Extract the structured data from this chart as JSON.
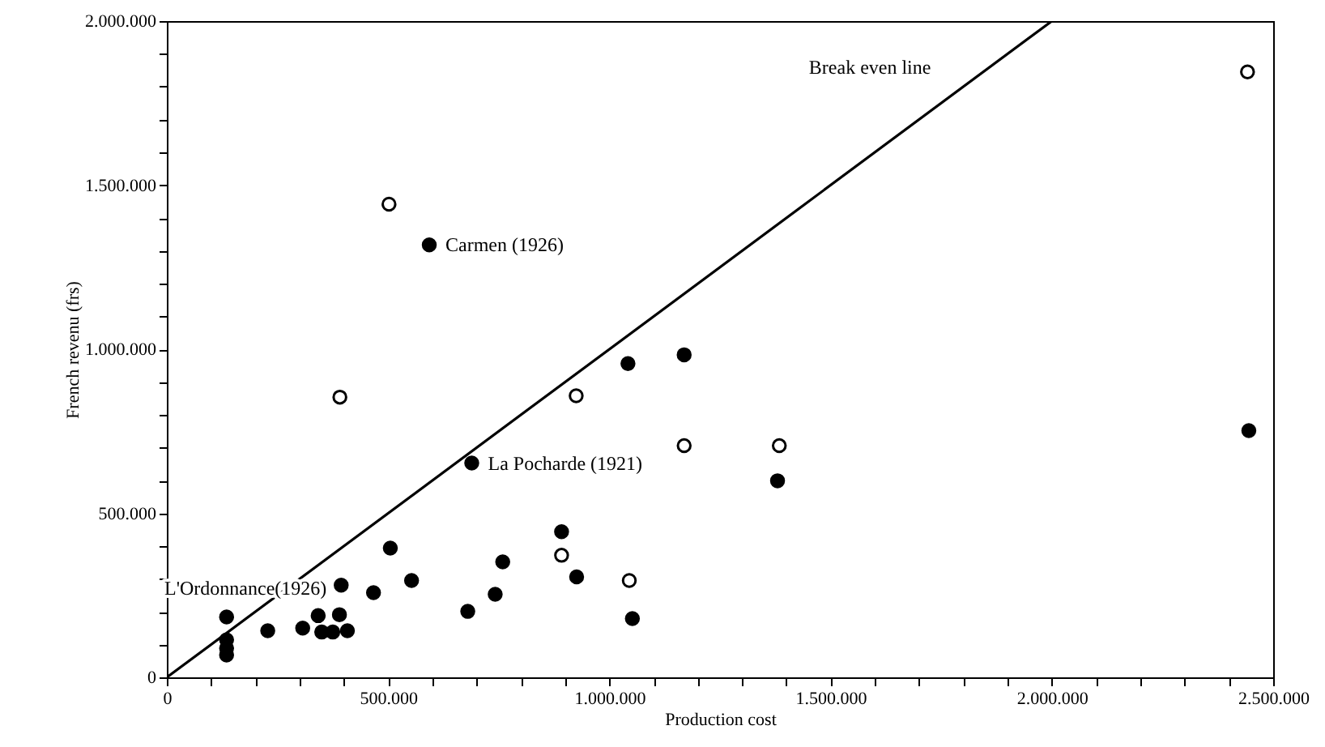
{
  "chart_data": {
    "type": "scatter",
    "xlabel": "Production cost",
    "ylabel": "French revenu (frs)",
    "xlim": [
      0,
      2500000
    ],
    "ylim": [
      0,
      2000000
    ],
    "xticks": [
      {
        "value": 0,
        "label": "0"
      },
      {
        "value": 100000,
        "label": null
      },
      {
        "value": 200000,
        "label": null
      },
      {
        "value": 300000,
        "label": null
      },
      {
        "value": 400000,
        "label": null
      },
      {
        "value": 500000,
        "label": "500.000"
      },
      {
        "value": 600000,
        "label": null
      },
      {
        "value": 700000,
        "label": null
      },
      {
        "value": 800000,
        "label": null
      },
      {
        "value": 900000,
        "label": null
      },
      {
        "value": 1000000,
        "label": "1.000.000"
      },
      {
        "value": 1100000,
        "label": null
      },
      {
        "value": 1200000,
        "label": null
      },
      {
        "value": 1300000,
        "label": null
      },
      {
        "value": 1400000,
        "label": null
      },
      {
        "value": 1500000,
        "label": "1.500.000"
      },
      {
        "value": 1600000,
        "label": null
      },
      {
        "value": 1700000,
        "label": null
      },
      {
        "value": 1800000,
        "label": null
      },
      {
        "value": 1900000,
        "label": null
      },
      {
        "value": 2000000,
        "label": "2.000.000"
      },
      {
        "value": 2100000,
        "label": null
      },
      {
        "value": 2200000,
        "label": null
      },
      {
        "value": 2300000,
        "label": null
      },
      {
        "value": 2400000,
        "label": null
      },
      {
        "value": 2500000,
        "label": "2.500.000"
      }
    ],
    "yticks": [
      {
        "value": 0,
        "label": "0"
      },
      {
        "value": 100000,
        "label": null
      },
      {
        "value": 200000,
        "label": null
      },
      {
        "value": 300000,
        "label": null
      },
      {
        "value": 400000,
        "label": null
      },
      {
        "value": 500000,
        "label": "500.000"
      },
      {
        "value": 600000,
        "label": null
      },
      {
        "value": 700000,
        "label": null
      },
      {
        "value": 800000,
        "label": null
      },
      {
        "value": 900000,
        "label": null
      },
      {
        "value": 1000000,
        "label": "1.000.000"
      },
      {
        "value": 1100000,
        "label": null
      },
      {
        "value": 1200000,
        "label": null
      },
      {
        "value": 1300000,
        "label": null
      },
      {
        "value": 1400000,
        "label": null
      },
      {
        "value": 1500000,
        "label": "1.500.000"
      },
      {
        "value": 1600000,
        "label": null
      },
      {
        "value": 1700000,
        "label": null
      },
      {
        "value": 1800000,
        "label": null
      },
      {
        "value": 1900000,
        "label": null
      },
      {
        "value": 2000000,
        "label": "2.000.000"
      }
    ],
    "marker": "circle",
    "series": [
      {
        "color": "#000000",
        "x": [
          135000,
          135000,
          135000,
          135000,
          228000,
          307000,
          342000,
          350000,
          375000,
          390000,
          408000,
          394000,
          467000,
          505000,
          553000,
          680000,
          742000,
          759000,
          892000,
          926000,
          1052000,
          689000,
          593000,
          1042000,
          1169000,
          1380000,
          2445000
        ],
        "values": [
          184000,
          114000,
          89000,
          68000,
          142000,
          150000,
          188000,
          138000,
          138000,
          191000,
          142000,
          281000,
          258000,
          394000,
          295000,
          201000,
          253000,
          352000,
          444000,
          306000,
          179000,
          653000,
          1318000,
          956000,
          983000,
          599000,
          752000
        ]
      },
      {
        "color": "#ffffff",
        "x": [
          502000,
          391000,
          925000,
          1169000,
          1384000,
          892000,
          1045000,
          2442000
        ],
        "values": [
          1442000,
          854000,
          858000,
          706000,
          706000,
          372000,
          295000,
          1845000
        ]
      },
      {
        "type": "line",
        "marker": "none",
        "color": "#000000",
        "x": [
          0,
          2000000
        ],
        "values": [
          0,
          2000000
        ]
      }
    ],
    "annotations": [
      {
        "text": "Break even line",
        "x": 1850000,
        "y": 1850000
      },
      {
        "text": "Carmen (1926)",
        "x": 593000,
        "y": 1318000
      },
      {
        "text": "La Pocharde (1921)",
        "x": 689000,
        "y": 653000
      },
      {
        "text": "L'Ordonnance(1926)",
        "x": 394000,
        "y": 281000
      }
    ]
  }
}
